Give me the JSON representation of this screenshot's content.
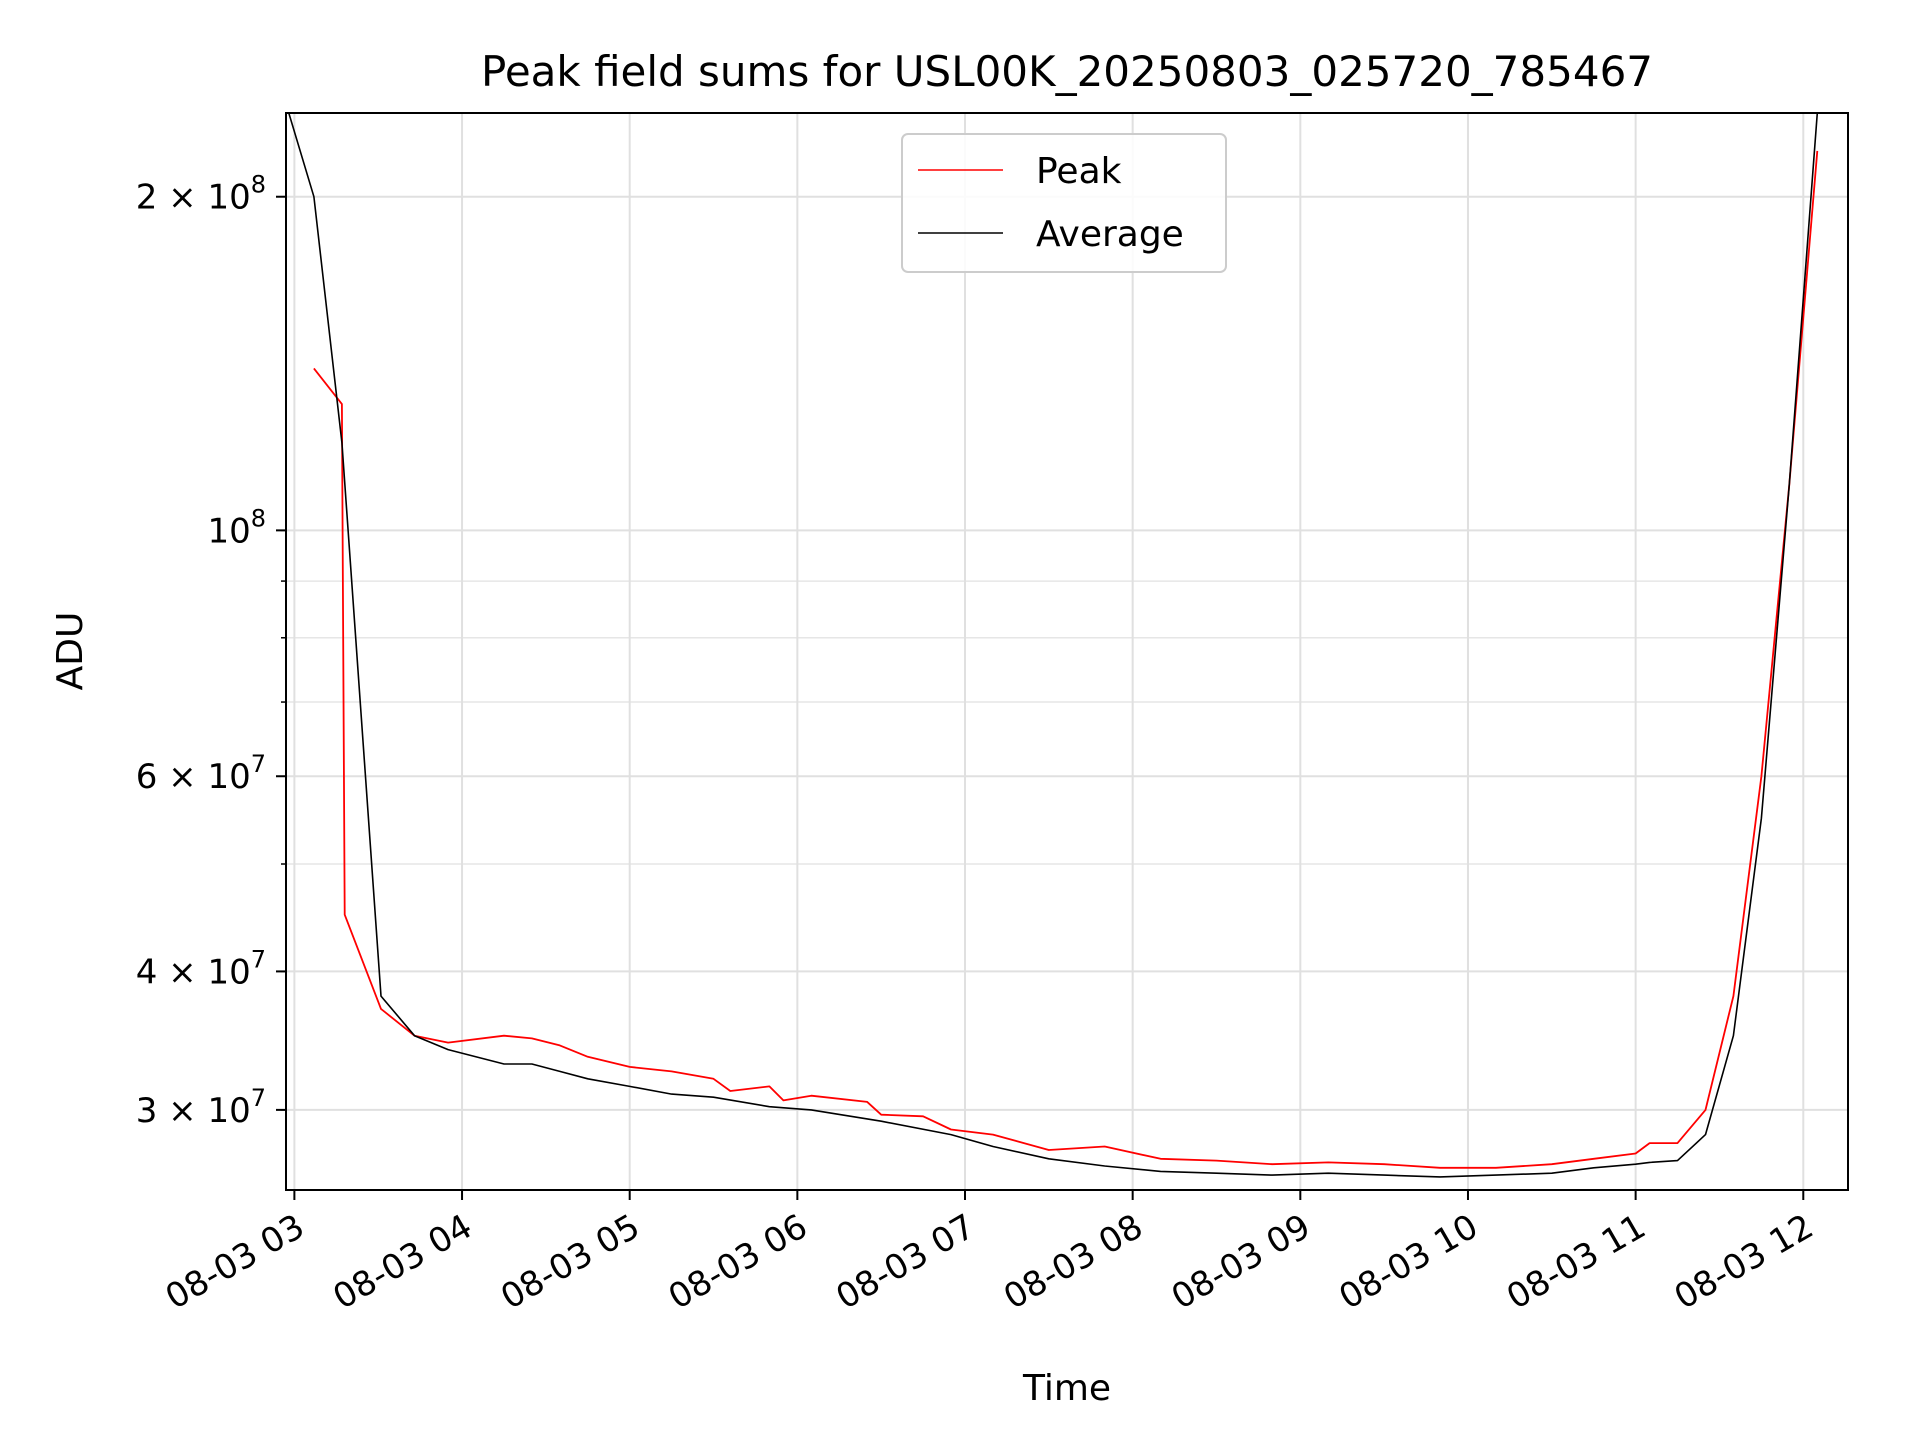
{
  "chart_data": {
    "type": "line",
    "title": "Peak field sums for USL00K_20250803_025720_785467",
    "xlabel": "Time",
    "ylabel": "ADU",
    "yscale": "log",
    "xlim": [
      "2025-08-03 02:57",
      "2025-08-03 12:16"
    ],
    "ylim": [
      25400000,
      238000000
    ],
    "grid": true,
    "legend": {
      "position": "upper center"
    },
    "x_ticks": [
      {
        "value": "2025-08-03 03:00",
        "label": "08-03 03"
      },
      {
        "value": "2025-08-03 04:00",
        "label": "08-03 04"
      },
      {
        "value": "2025-08-03 05:00",
        "label": "08-03 05"
      },
      {
        "value": "2025-08-03 06:00",
        "label": "08-03 06"
      },
      {
        "value": "2025-08-03 07:00",
        "label": "08-03 07"
      },
      {
        "value": "2025-08-03 08:00",
        "label": "08-03 08"
      },
      {
        "value": "2025-08-03 09:00",
        "label": "08-03 09"
      },
      {
        "value": "2025-08-03 10:00",
        "label": "08-03 10"
      },
      {
        "value": "2025-08-03 11:00",
        "label": "08-03 11"
      },
      {
        "value": "2025-08-03 12:00",
        "label": "08-03 12"
      }
    ],
    "y_ticks": [
      {
        "value": 30000000,
        "mantissa": "3",
        "exponent": "7"
      },
      {
        "value": 40000000,
        "mantissa": "4",
        "exponent": "7"
      },
      {
        "value": 60000000,
        "mantissa": "6",
        "exponent": "7"
      },
      {
        "value": 100000000,
        "mantissa": "",
        "exponent": "8"
      },
      {
        "value": 200000000,
        "mantissa": "2",
        "exponent": "8"
      }
    ],
    "series": [
      {
        "name": "Peak",
        "color": "#ff0000",
        "x": [
          "2025-08-03 03:07",
          "2025-08-03 03:17",
          "2025-08-03 03:18",
          "2025-08-03 03:31",
          "2025-08-03 03:43",
          "2025-08-03 03:55",
          "2025-08-03 04:15",
          "2025-08-03 04:25",
          "2025-08-03 04:35",
          "2025-08-03 04:45",
          "2025-08-03 05:00",
          "2025-08-03 05:15",
          "2025-08-03 05:30",
          "2025-08-03 05:36",
          "2025-08-03 05:50",
          "2025-08-03 05:55",
          "2025-08-03 06:05",
          "2025-08-03 06:25",
          "2025-08-03 06:30",
          "2025-08-03 06:45",
          "2025-08-03 06:55",
          "2025-08-03 07:10",
          "2025-08-03 07:30",
          "2025-08-03 07:50",
          "2025-08-03 08:10",
          "2025-08-03 08:30",
          "2025-08-03 08:50",
          "2025-08-03 09:10",
          "2025-08-03 09:30",
          "2025-08-03 09:50",
          "2025-08-03 10:10",
          "2025-08-03 10:30",
          "2025-08-03 10:45",
          "2025-08-03 11:00",
          "2025-08-03 11:05",
          "2025-08-03 11:15",
          "2025-08-03 11:25",
          "2025-08-03 11:35",
          "2025-08-03 11:45",
          "2025-08-03 11:55",
          "2025-08-03 12:05"
        ],
        "y": [
          140000000,
          130000000,
          45000000,
          37000000,
          35000000,
          34500000,
          35000000,
          34800000,
          34300000,
          33500000,
          32800000,
          32500000,
          32000000,
          31200000,
          31500000,
          30600000,
          30900000,
          30500000,
          29700000,
          29600000,
          28800000,
          28500000,
          27600000,
          27800000,
          27100000,
          27000000,
          26800000,
          26900000,
          26800000,
          26600000,
          26600000,
          26800000,
          27100000,
          27400000,
          28000000,
          28000000,
          30000000,
          38000000,
          60000000,
          110000000,
          220000000
        ]
      },
      {
        "name": "Average",
        "color": "#000000",
        "x": [
          "2025-08-03 02:58",
          "2025-08-03 03:07",
          "2025-08-03 03:17",
          "2025-08-03 03:31",
          "2025-08-03 03:43",
          "2025-08-03 03:55",
          "2025-08-03 04:15",
          "2025-08-03 04:25",
          "2025-08-03 04:35",
          "2025-08-03 04:45",
          "2025-08-03 05:00",
          "2025-08-03 05:15",
          "2025-08-03 05:30",
          "2025-08-03 05:50",
          "2025-08-03 06:05",
          "2025-08-03 06:30",
          "2025-08-03 06:55",
          "2025-08-03 07:10",
          "2025-08-03 07:30",
          "2025-08-03 07:50",
          "2025-08-03 08:10",
          "2025-08-03 08:30",
          "2025-08-03 08:50",
          "2025-08-03 09:10",
          "2025-08-03 09:30",
          "2025-08-03 09:50",
          "2025-08-03 10:10",
          "2025-08-03 10:30",
          "2025-08-03 10:45",
          "2025-08-03 11:00",
          "2025-08-03 11:05",
          "2025-08-03 11:15",
          "2025-08-03 11:25",
          "2025-08-03 11:35",
          "2025-08-03 11:45",
          "2025-08-03 11:55",
          "2025-08-03 12:05"
        ],
        "y": [
          238000000,
          200000000,
          120000000,
          38000000,
          35000000,
          34000000,
          33000000,
          33000000,
          32500000,
          32000000,
          31500000,
          31000000,
          30800000,
          30200000,
          30000000,
          29300000,
          28500000,
          27800000,
          27100000,
          26700000,
          26400000,
          26300000,
          26200000,
          26300000,
          26200000,
          26100000,
          26200000,
          26300000,
          26600000,
          26800000,
          26900000,
          27000000,
          28500000,
          35000000,
          55000000,
          110000000,
          238000000
        ]
      }
    ]
  }
}
